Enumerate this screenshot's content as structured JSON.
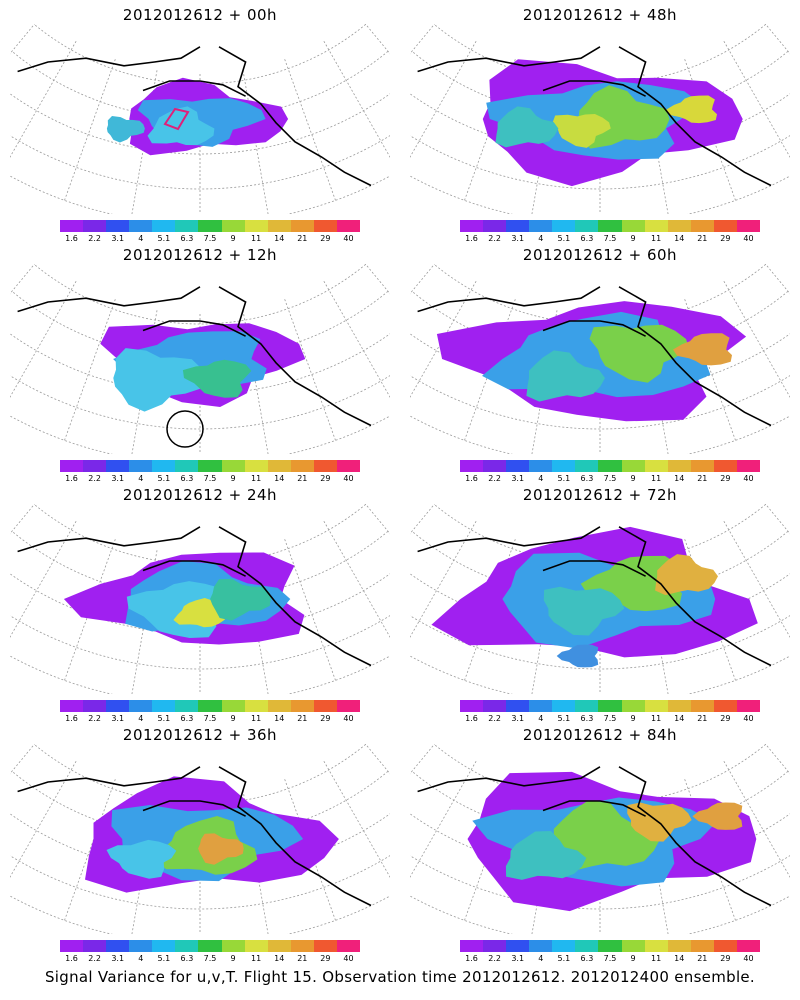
{
  "panels": [
    {
      "title": "2012012612 + 00h",
      "extent": 0.55,
      "highlights": [
        [
          0.45,
          0.55,
          0.08,
          "#48c4e8"
        ],
        [
          0.3,
          0.55,
          0.05,
          "#40b8d8"
        ]
      ],
      "marker": "quad"
    },
    {
      "title": "2012012612 + 48h",
      "extent": 0.9,
      "highlights": [
        [
          0.55,
          0.5,
          0.12,
          "#7ad04a"
        ],
        [
          0.45,
          0.55,
          0.07,
          "#c8dc40"
        ],
        [
          0.75,
          0.45,
          0.06,
          "#d8d83a"
        ],
        [
          0.3,
          0.55,
          0.08,
          "#3ec0c0"
        ]
      ],
      "marker": ""
    },
    {
      "title": "2012012612 + 12h",
      "extent": 0.65,
      "highlights": [
        [
          0.38,
          0.6,
          0.12,
          "#48c4e8"
        ],
        [
          0.55,
          0.6,
          0.08,
          "#38c090"
        ]
      ],
      "marker": "circle"
    },
    {
      "title": "2012012612 + 60h",
      "extent": 0.95,
      "highlights": [
        [
          0.6,
          0.45,
          0.12,
          "#7ad04a"
        ],
        [
          0.78,
          0.45,
          0.07,
          "#e0a040"
        ],
        [
          0.4,
          0.6,
          0.1,
          "#3ec0c0"
        ]
      ],
      "marker": ""
    },
    {
      "title": "2012012612 + 24h",
      "extent": 0.75,
      "highlights": [
        [
          0.45,
          0.55,
          0.12,
          "#48c4e8"
        ],
        [
          0.5,
          0.58,
          0.06,
          "#d8e040"
        ],
        [
          0.6,
          0.5,
          0.08,
          "#38c0a0"
        ]
      ],
      "marker": ""
    },
    {
      "title": "2012012612 + 72h",
      "extent": 1.0,
      "highlights": [
        [
          0.6,
          0.42,
          0.12,
          "#7ad04a"
        ],
        [
          0.72,
          0.38,
          0.08,
          "#e0b040"
        ],
        [
          0.45,
          0.55,
          0.1,
          "#3ec0c0"
        ],
        [
          0.45,
          0.8,
          0.05,
          "#4090e0"
        ]
      ],
      "marker": ""
    },
    {
      "title": "2012012612 + 36h",
      "extent": 0.85,
      "highlights": [
        [
          0.52,
          0.55,
          0.12,
          "#7ad04a"
        ],
        [
          0.55,
          0.55,
          0.06,
          "#e0a040"
        ],
        [
          0.35,
          0.6,
          0.08,
          "#48c4e8"
        ]
      ],
      "marker": ""
    },
    {
      "title": "2012012612 + 84h",
      "extent": 1.0,
      "highlights": [
        [
          0.5,
          0.5,
          0.14,
          "#7ad04a"
        ],
        [
          0.65,
          0.4,
          0.08,
          "#e0b040"
        ],
        [
          0.82,
          0.38,
          0.06,
          "#e0a040"
        ],
        [
          0.35,
          0.6,
          0.1,
          "#3ec0c0"
        ]
      ],
      "marker": ""
    }
  ],
  "colorbar": {
    "labels": [
      "1.6",
      "2.2",
      "3.1",
      "4",
      "5.1",
      "6.3",
      "7.5",
      "9",
      "11",
      "14",
      "21",
      "29",
      "40"
    ],
    "colors": [
      "#a020f0",
      "#7a28e8",
      "#3050f0",
      "#2c8ee8",
      "#20b8f0",
      "#20c8b8",
      "#30c040",
      "#98d838",
      "#d8e040",
      "#e0b838",
      "#e89830",
      "#f05830",
      "#f0207a"
    ]
  },
  "caption": "Signal Variance for u,v,T. Flight 15. Observation time 2012012612. 2012012400 ensemble."
}
